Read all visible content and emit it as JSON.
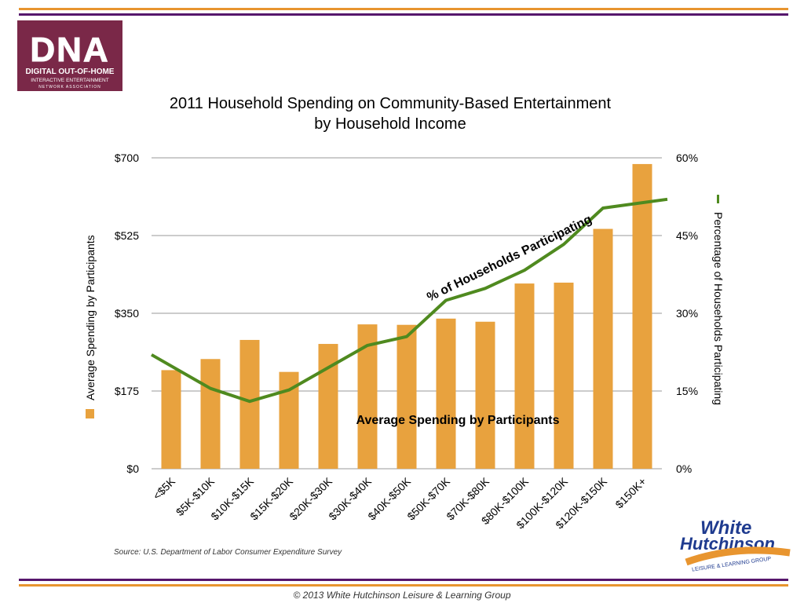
{
  "logo": {
    "mark": "DNA",
    "line1": "DIGITAL OUT-OF-HOME",
    "line2": "INTERACTIVE ENTERTAINMENT",
    "line3": "NETWORK ASSOCIATION",
    "color": "#7a2848"
  },
  "brand": {
    "line1": "White",
    "line2": "Hutchinson",
    "tagline": "LEISURE & LEARNING GROUP",
    "color": "#1f3b8f",
    "accent": "#e8952f"
  },
  "footer": "© 2013 White Hutchinson Leisure & Learning Group",
  "chart_data": {
    "type": "bar",
    "title": [
      "2011 Household Spending on Community-Based Entertainment",
      "by Household Income"
    ],
    "categories": [
      "<$5K",
      "$5K-$10K",
      "$10K-$15K",
      "$15K-$20K",
      "$20K-$30K",
      "$30K-$40K",
      "$40K-$50K",
      "$50K-$70K",
      "$70K-$80K",
      "$80K-$100K",
      "$100K-$120K",
      "$120K-$150K",
      "$150K+"
    ],
    "series": [
      {
        "name": "Average Spending by Participants",
        "type": "bar",
        "axis": "left",
        "color": "#e8a23e",
        "values": [
          222,
          247,
          290,
          218,
          281,
          325,
          324,
          338,
          331,
          417,
          419,
          540,
          686
        ]
      },
      {
        "name": "% of Households Participating",
        "type": "line",
        "axis": "right",
        "color": "#4f8a1f",
        "values": [
          22,
          15.5,
          13,
          15.2,
          19.5,
          23.8,
          25.5,
          32.5,
          34.8,
          38.3,
          43.3,
          50.3,
          52
        ]
      }
    ],
    "ylabel": "Average Spending by Participants",
    "y2label": "Percentage of Households Participating",
    "ylim": [
      0,
      700
    ],
    "y2lim": [
      0,
      60
    ],
    "yticks": [
      "$0",
      "$175",
      "$350",
      "$525",
      "$700"
    ],
    "y2ticks": [
      "0%",
      "15%",
      "30%",
      "45%",
      "60%"
    ],
    "grid": true,
    "annotations": [
      "% of Households Participating",
      "Average Spending by Participants"
    ],
    "source": "Source: U.S. Department of Labor Consumer Expenditure Survey"
  }
}
